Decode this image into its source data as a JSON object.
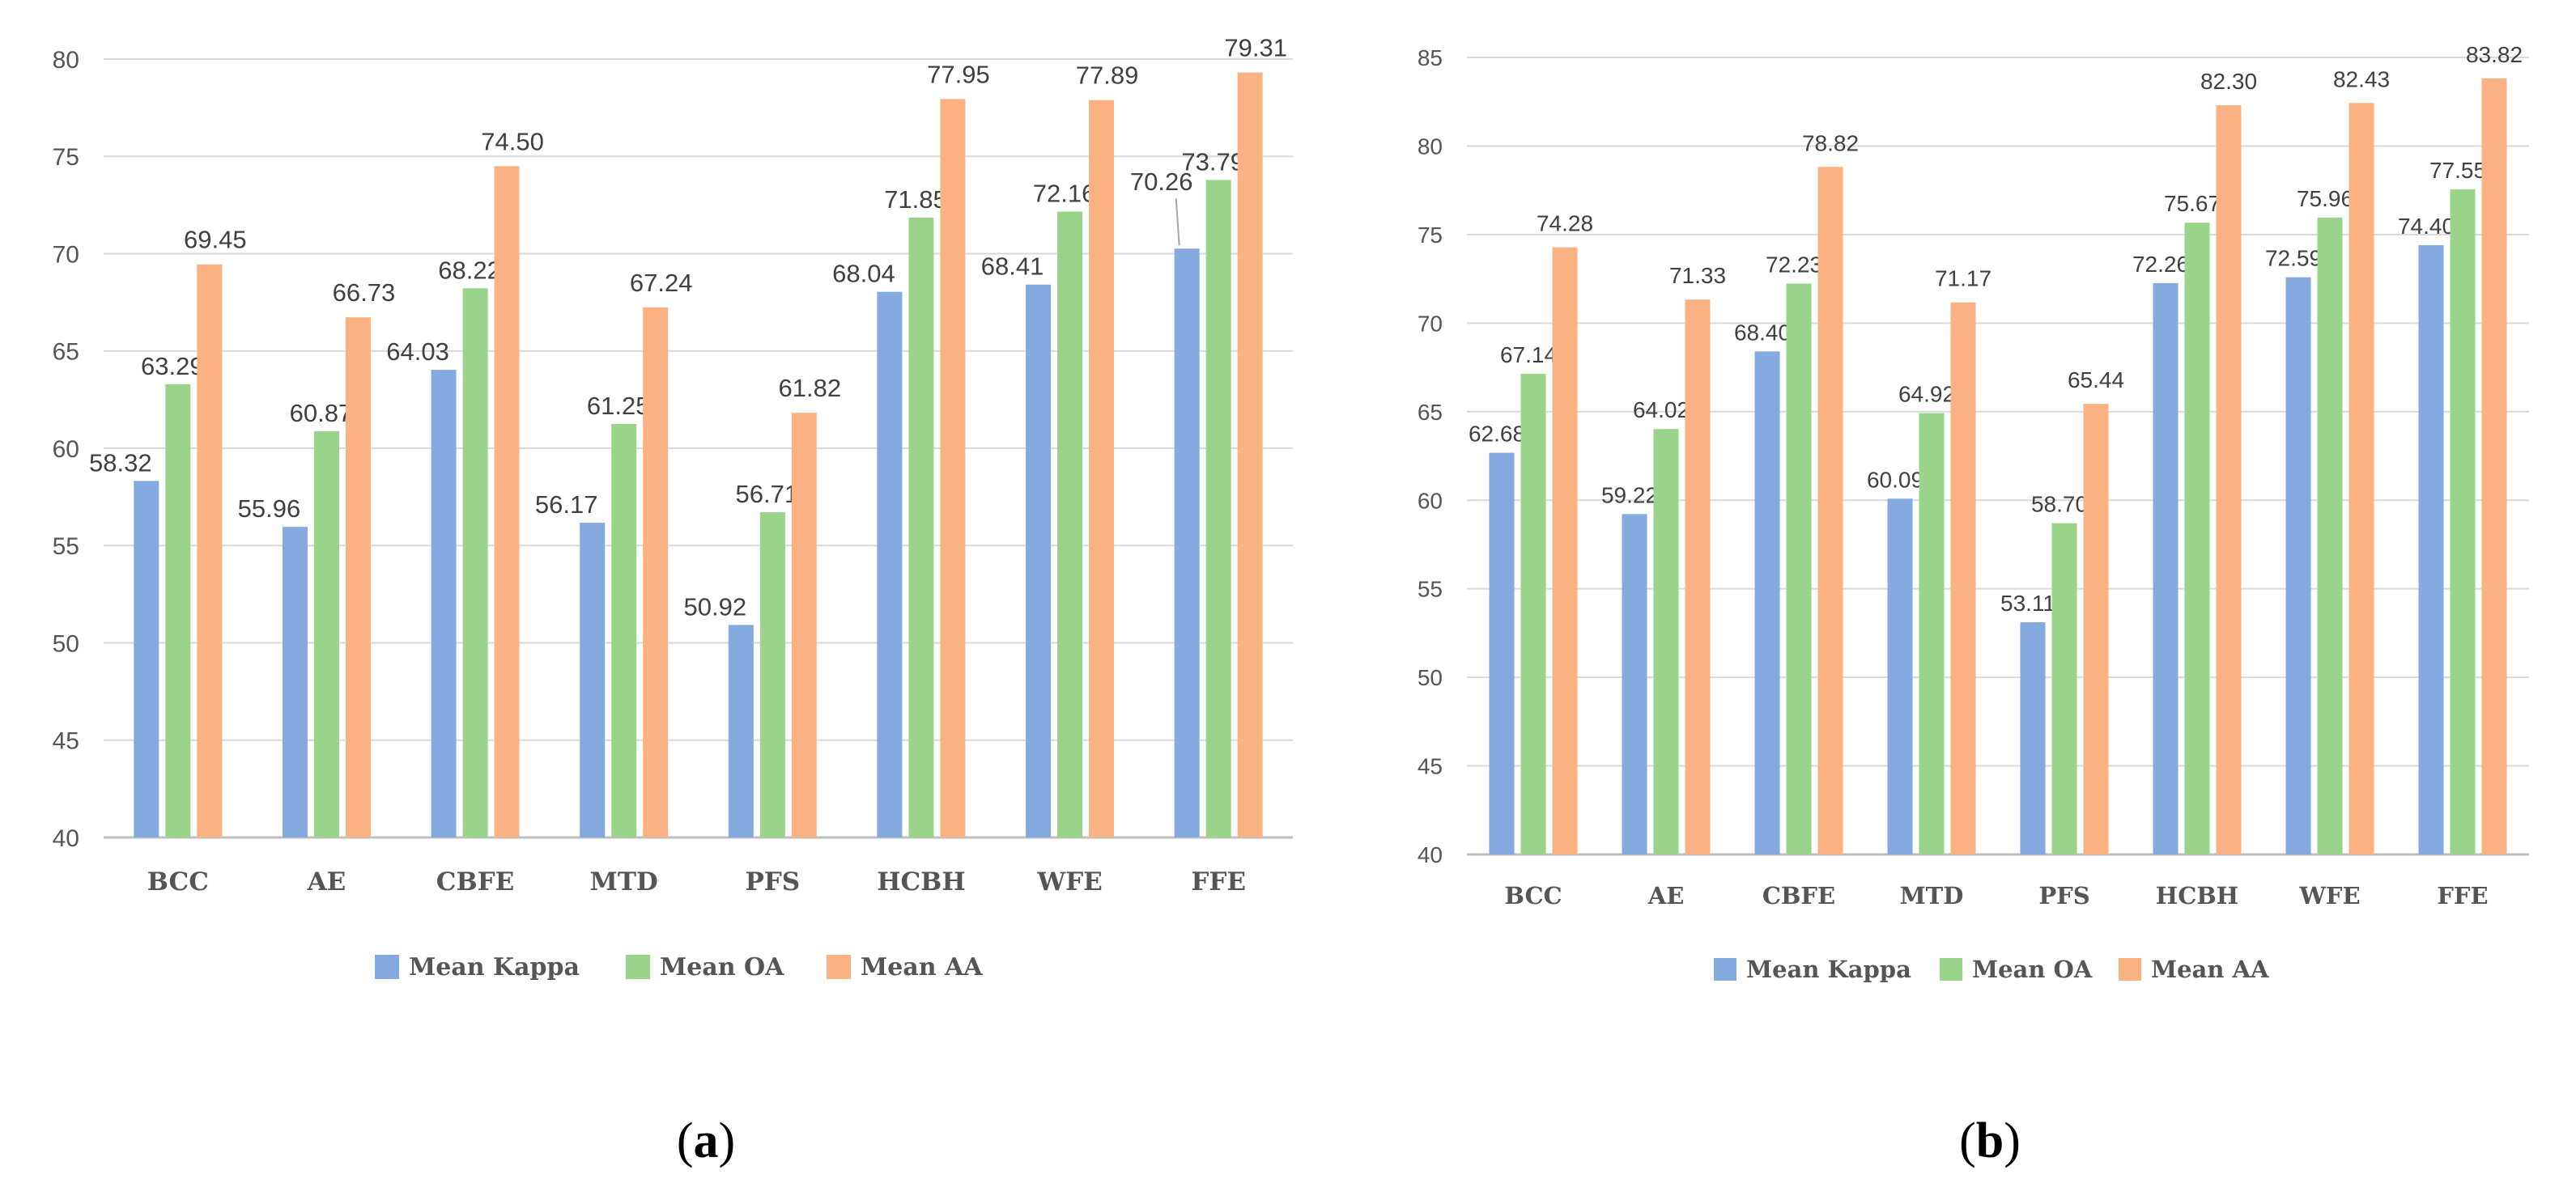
{
  "chart_data": [
    {
      "type": "bar",
      "panel": "a",
      "caption": {
        "open": "(",
        "letter": "a",
        "close": ")"
      },
      "categories": [
        "BCC",
        "AE",
        "CBFE",
        "MTD",
        "PFS",
        "HCBH",
        "WFE",
        "FFE"
      ],
      "series": [
        {
          "name": "Mean Kappa",
          "color": "#84aadf",
          "values": [
            58.32,
            55.96,
            64.03,
            56.17,
            50.92,
            68.04,
            68.41,
            70.26
          ]
        },
        {
          "name": "Mean OA",
          "color": "#9ad48a",
          "values": [
            63.29,
            60.87,
            68.22,
            61.25,
            56.71,
            71.85,
            72.16,
            73.79
          ]
        },
        {
          "name": "Mean AA",
          "color": "#fbb283",
          "values": [
            69.45,
            66.73,
            74.5,
            67.24,
            61.82,
            77.95,
            77.89,
            79.31
          ]
        }
      ],
      "ylim": [
        40,
        80
      ],
      "yticks": [
        40,
        45,
        50,
        55,
        60,
        65,
        70,
        75,
        80
      ],
      "grid": true,
      "legend": "bottom-center",
      "xlabel": "",
      "ylabel": "",
      "title": ""
    },
    {
      "type": "bar",
      "panel": "b",
      "caption": {
        "open": "(",
        "letter": "b",
        "close": ")"
      },
      "categories": [
        "BCC",
        "AE",
        "CBFE",
        "MTD",
        "PFS",
        "HCBH",
        "WFE",
        "FFE"
      ],
      "series": [
        {
          "name": "Mean Kappa",
          "color": "#84aadf",
          "values": [
            62.68,
            59.22,
            68.4,
            60.09,
            53.11,
            72.26,
            72.59,
            74.4
          ]
        },
        {
          "name": "Mean OA",
          "color": "#9ad48a",
          "values": [
            67.14,
            64.02,
            72.23,
            64.92,
            58.7,
            75.67,
            75.96,
            77.55
          ]
        },
        {
          "name": "Mean AA",
          "color": "#fbb283",
          "values": [
            74.28,
            71.33,
            78.82,
            71.17,
            65.44,
            82.3,
            82.43,
            83.82
          ]
        }
      ],
      "ylim": [
        40,
        85
      ],
      "yticks": [
        40,
        45,
        50,
        55,
        60,
        65,
        70,
        75,
        80,
        85
      ],
      "grid": true,
      "legend": "bottom-center",
      "xlabel": "",
      "ylabel": "",
      "title": ""
    }
  ]
}
